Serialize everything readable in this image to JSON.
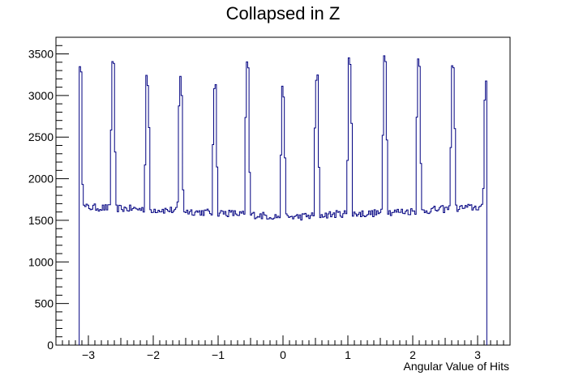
{
  "chart_data": {
    "type": "line",
    "title": "Collapsed in Z",
    "xlabel": "Angular Value of Hits",
    "ylabel": "",
    "xlim": [
      -3.5,
      3.5
    ],
    "ylim": [
      0,
      3700
    ],
    "x_ticks": [
      -3,
      -2,
      -1,
      0,
      1,
      2,
      3
    ],
    "x_tick_labels": [
      "−3",
      "−2",
      "−1",
      "0",
      "1",
      "2",
      "3"
    ],
    "y_ticks": [
      0,
      500,
      1000,
      1500,
      2000,
      2500,
      3000,
      3500
    ],
    "y_tick_labels": [
      "0",
      "500",
      "1000",
      "1500",
      "2000",
      "2500",
      "3000",
      "3500"
    ],
    "grid": false,
    "legend": "none",
    "series": [
      {
        "color": "#000080",
        "range": [
          -3.14159,
          3.14159
        ],
        "baseline": [
          1660,
          1650,
          1640,
          1630,
          1620,
          1600,
          1590,
          1570,
          1550,
          1540,
          1560,
          1580,
          1580,
          1600,
          1610,
          1630,
          1650,
          1660
        ],
        "peaks": [
          {
            "x": -3.13,
            "height": 3480
          },
          {
            "x": -2.62,
            "height": 3440
          },
          {
            "x": -2.09,
            "height": 3270
          },
          {
            "x": -1.58,
            "height": 3280
          },
          {
            "x": -1.05,
            "height": 3150
          },
          {
            "x": -0.55,
            "height": 3440
          },
          {
            "x": 0.0,
            "height": 3130
          },
          {
            "x": 0.52,
            "height": 3330
          },
          {
            "x": 1.03,
            "height": 3460
          },
          {
            "x": 1.57,
            "height": 3510
          },
          {
            "x": 2.09,
            "height": 3470
          },
          {
            "x": 2.62,
            "height": 3480
          },
          {
            "x": 3.13,
            "height": 3200
          }
        ]
      }
    ]
  }
}
